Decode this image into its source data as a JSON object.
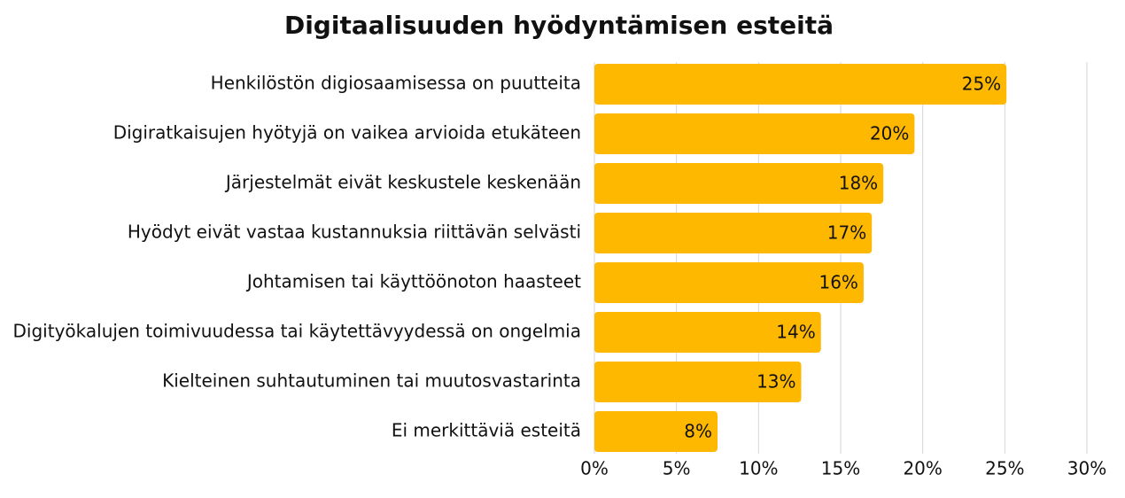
{
  "chart_data": {
    "type": "bar",
    "orientation": "horizontal",
    "title": "Digitaalisuuden hyödyntämisen esteitä",
    "categories": [
      "Henkilöstön digiosaamisessa on puutteita",
      "Digiratkaisujen hyötyjä on vaikea arvioida etukäteen",
      "Järjestelmät eivät keskustele keskenään",
      "Hyödyt eivät vastaa kustannuksia riittävän selvästi",
      "Johtamisen tai käyttöönoton haasteet",
      "Digityökalujen toimivuudessa tai käytettävyydessä on ongelmia",
      "Kielteinen suhtautuminen tai muutosvastarinta",
      "Ei merkittäviä esteitä"
    ],
    "values": [
      25.1,
      19.5,
      17.6,
      16.9,
      16.4,
      13.8,
      12.6,
      7.5
    ],
    "value_labels": [
      "25%",
      "20%",
      "18%",
      "17%",
      "16%",
      "14%",
      "13%",
      "8%"
    ],
    "color": "#ffb800",
    "xlim": [
      0,
      30
    ],
    "xticks": [
      {
        "value": 0,
        "label": "0%"
      },
      {
        "value": 5,
        "label": "5%"
      },
      {
        "value": 10,
        "label": "10%"
      },
      {
        "value": 15,
        "label": "15%"
      },
      {
        "value": 20,
        "label": "20%"
      },
      {
        "value": 25,
        "label": "25%"
      },
      {
        "value": 30,
        "label": "30%"
      }
    ],
    "grid": true
  }
}
